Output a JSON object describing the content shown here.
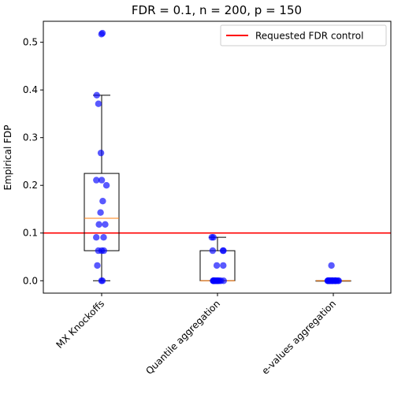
{
  "chart_data": {
    "type": "box",
    "title": "FDR = 0.1, n = 200, p = 150",
    "xlabel": "",
    "ylabel": "Empirical FDP",
    "ylim": [
      -0.026,
      0.544
    ],
    "yticks": [
      0.0,
      0.1,
      0.2,
      0.3,
      0.4,
      0.5
    ],
    "ytick_labels": [
      "0.0",
      "0.1",
      "0.2",
      "0.3",
      "0.4",
      "0.5"
    ],
    "categories": [
      "MX Knockoffs",
      "Quantile aggregation",
      "e-values aggregation"
    ],
    "boxes": [
      {
        "q1": 0.063,
        "median": 0.131,
        "q3": 0.225,
        "whisker_low": 0.0,
        "whisker_high": 0.389
      },
      {
        "q1": 0.0,
        "median": 0.0,
        "q3": 0.063,
        "whisker_low": 0.0,
        "whisker_high": 0.091
      },
      {
        "q1": 0.0,
        "median": 0.0,
        "q3": 0.0,
        "whisker_low": 0.0,
        "whisker_high": 0.0
      }
    ],
    "points": [
      [
        0.517,
        0.519,
        0.389,
        0.371,
        0.268,
        0.211,
        0.211,
        0.2,
        0.167,
        0.143,
        0.118,
        0.118,
        0.091,
        0.091,
        0.063,
        0.063,
        0.063,
        0.032,
        0.0,
        0.0
      ],
      [
        0.091,
        0.091,
        0.063,
        0.063,
        0.063,
        0.032,
        0.032,
        0.0,
        0.0,
        0.0,
        0.0,
        0.0,
        0.0,
        0.0,
        0.0,
        0.0,
        0.0,
        0.0,
        0.0,
        0.0
      ],
      [
        0.032,
        0.0,
        0.0,
        0.0,
        0.0,
        0.0,
        0.0,
        0.0,
        0.0,
        0.0,
        0.0,
        0.0,
        0.0,
        0.0,
        0.0,
        0.0,
        0.0,
        0.0,
        0.0,
        0.0
      ]
    ],
    "reference_line": {
      "value": 0.1,
      "label": "Requested FDR control"
    },
    "legend_position": "top-right",
    "grid": false,
    "colors": {
      "points": "#0000ff",
      "median": "#ff7f0e",
      "reference": "#ff0000",
      "box": "#000000"
    }
  }
}
